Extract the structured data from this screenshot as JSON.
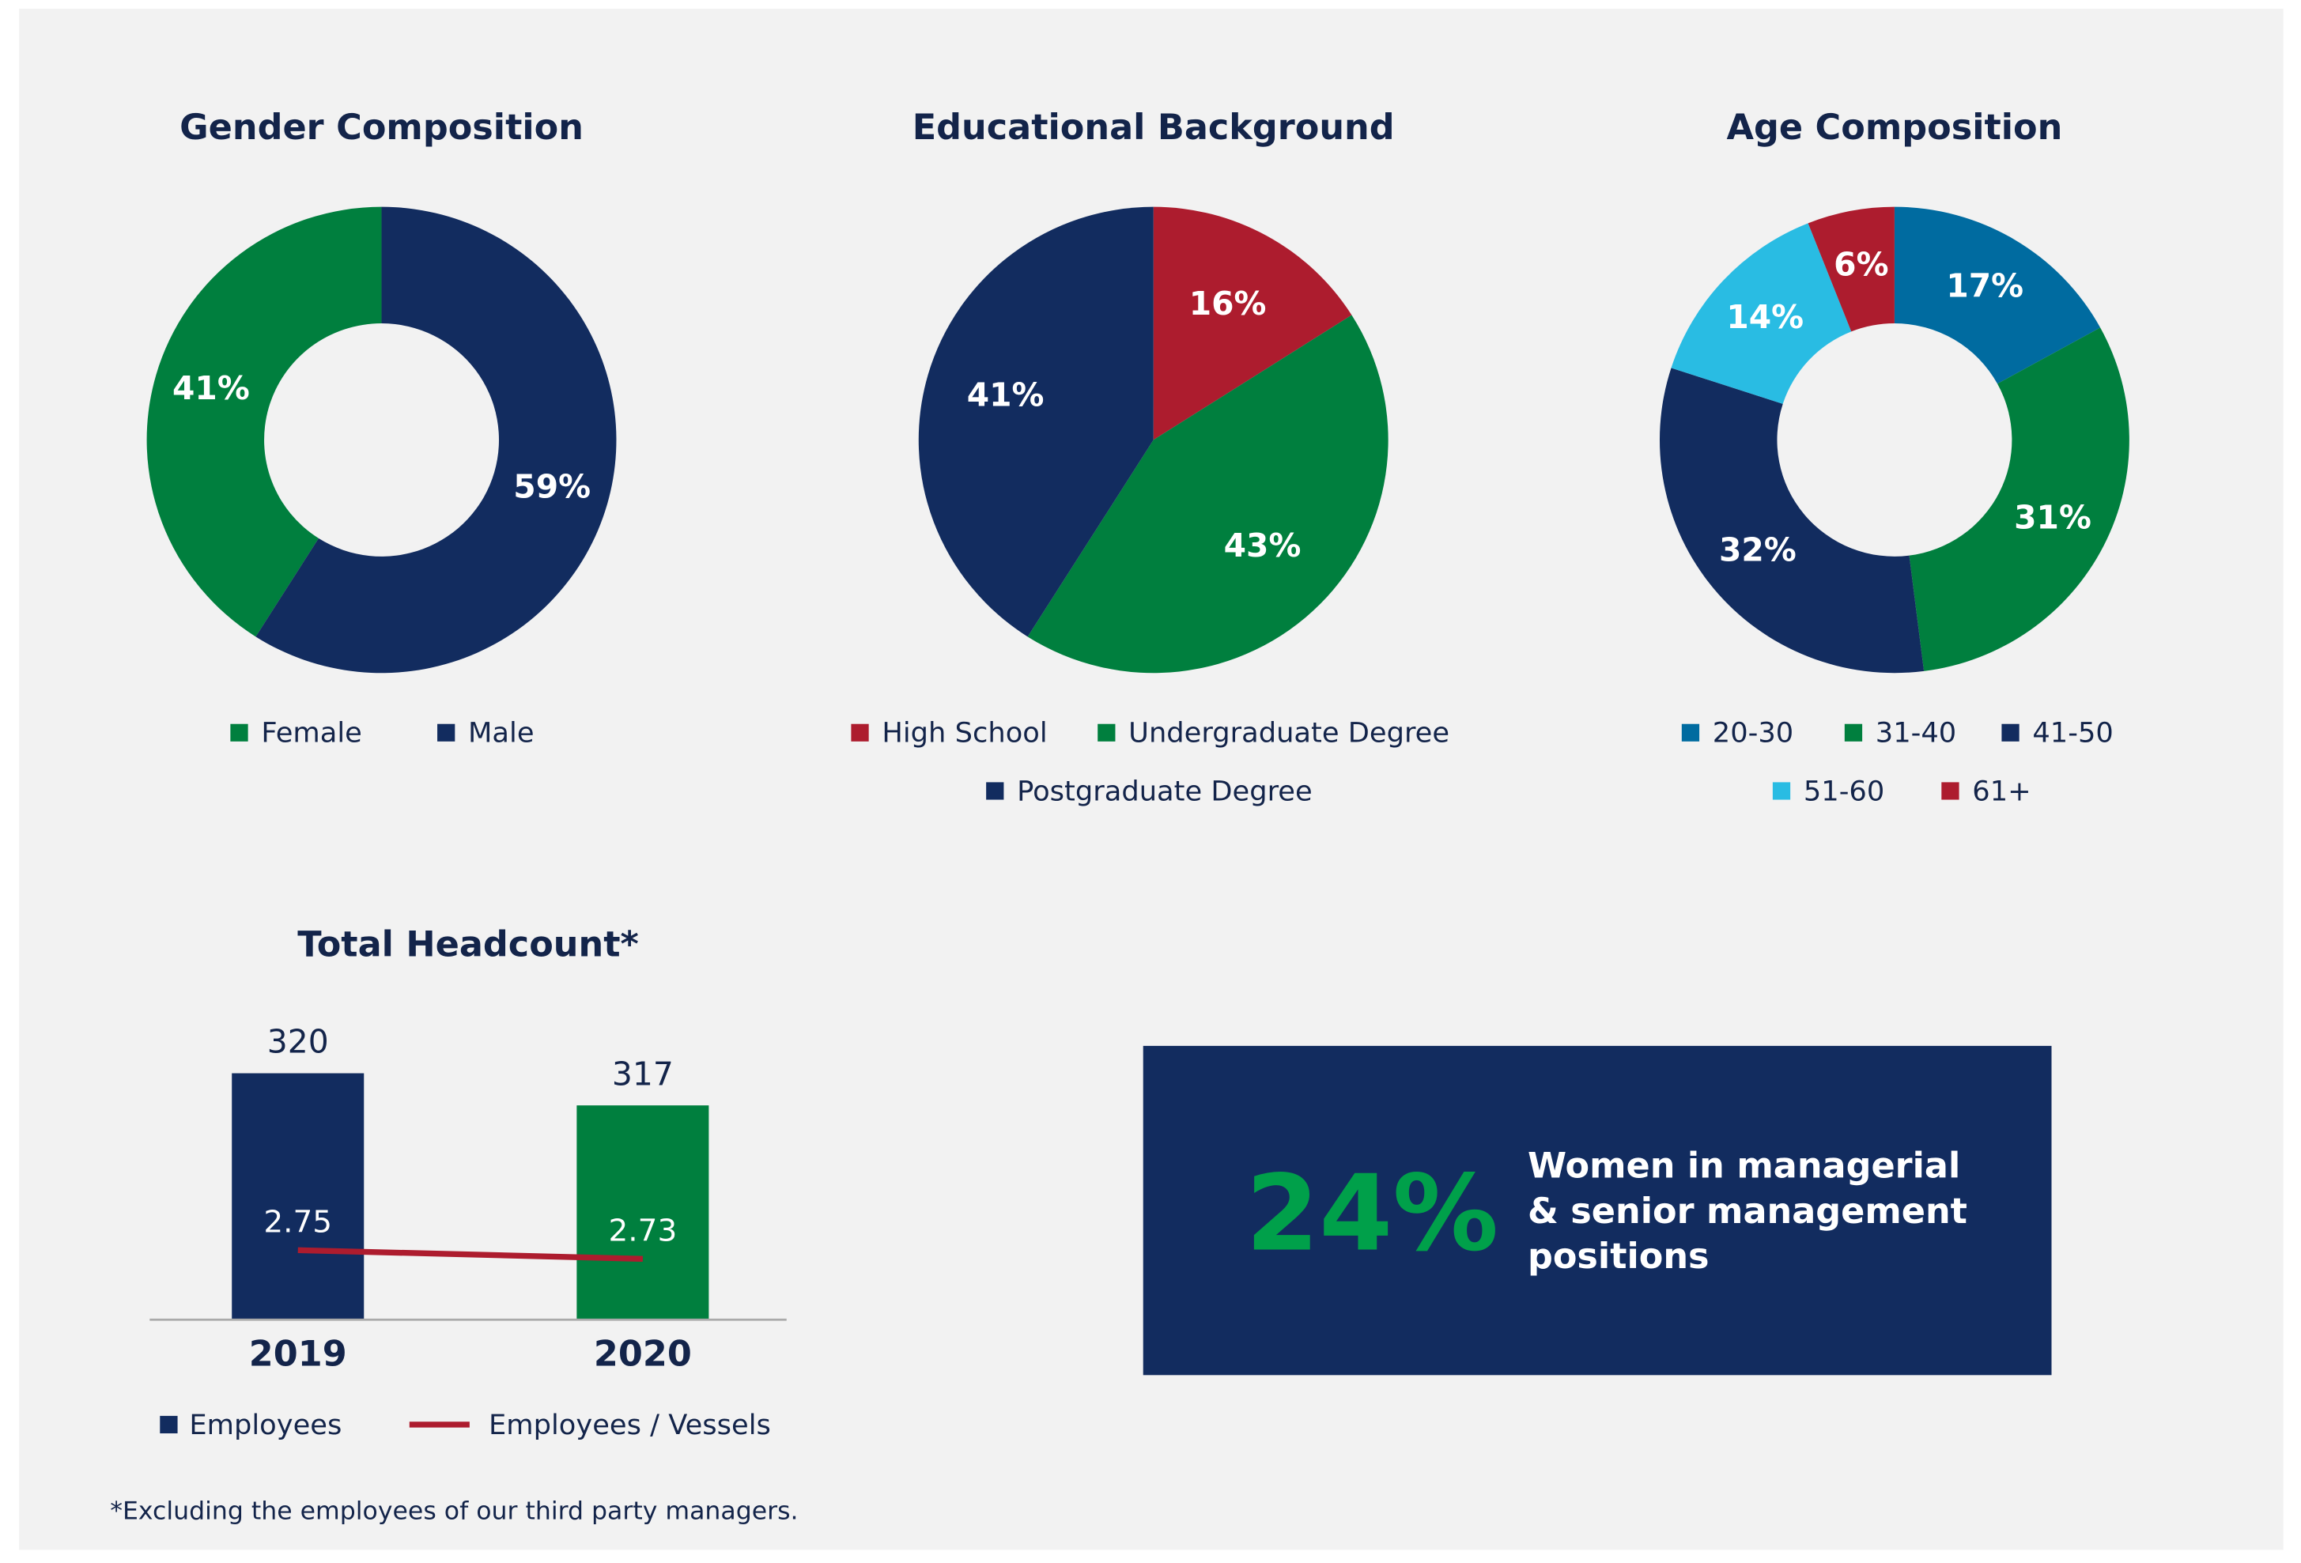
{
  "chart_data": [
    {
      "type": "donut",
      "title": "Gender Composition",
      "counterclockwise": true,
      "categories": [
        "Female",
        "Male"
      ],
      "values": [
        41,
        59
      ],
      "value_labels": [
        "41%",
        "59%"
      ],
      "colors": [
        "#007f3e",
        "#122c5f"
      ]
    },
    {
      "type": "pie",
      "title": "Educational Background",
      "categories": [
        "High School",
        "Undergraduate Degree",
        "Postgraduate Degree"
      ],
      "values": [
        16,
        43,
        41
      ],
      "value_labels": [
        "16%",
        "43%",
        "41%"
      ],
      "colors": [
        "#ad1c2e",
        "#007f3e",
        "#122c5f"
      ]
    },
    {
      "type": "donut",
      "title": "Age Composition",
      "categories": [
        "20-30",
        "31-40",
        "41-50",
        "51-60",
        "61+"
      ],
      "values": [
        17,
        31,
        32,
        14,
        6
      ],
      "value_labels": [
        "17%",
        "31%",
        "32%",
        "14%",
        "6%"
      ],
      "colors": [
        "#006ba0",
        "#007f3e",
        "#122c5f",
        "#29bce3",
        "#ad1c2e"
      ]
    },
    {
      "type": "bar_line",
      "title": "Total Headcount*",
      "categories": [
        "2019",
        "2020"
      ],
      "ylim": [
        297,
        325
      ],
      "y2lim": [
        2.59,
        3.28
      ],
      "series": [
        {
          "name": "Employees",
          "color": "#122c5f",
          "colors": [
            "#122c5f",
            "#007f3e"
          ],
          "values": [
            320,
            317
          ]
        },
        {
          "name": "Employees / Vessels",
          "color": "#ad1c2e",
          "values": [
            2.75,
            2.73
          ],
          "axis": "y2"
        }
      ]
    }
  ],
  "footnote": "*Excluding the employees of our third party managers.",
  "callout": {
    "value": "24%",
    "text": [
      "Women in managerial",
      "& senior management",
      "positions"
    ]
  }
}
